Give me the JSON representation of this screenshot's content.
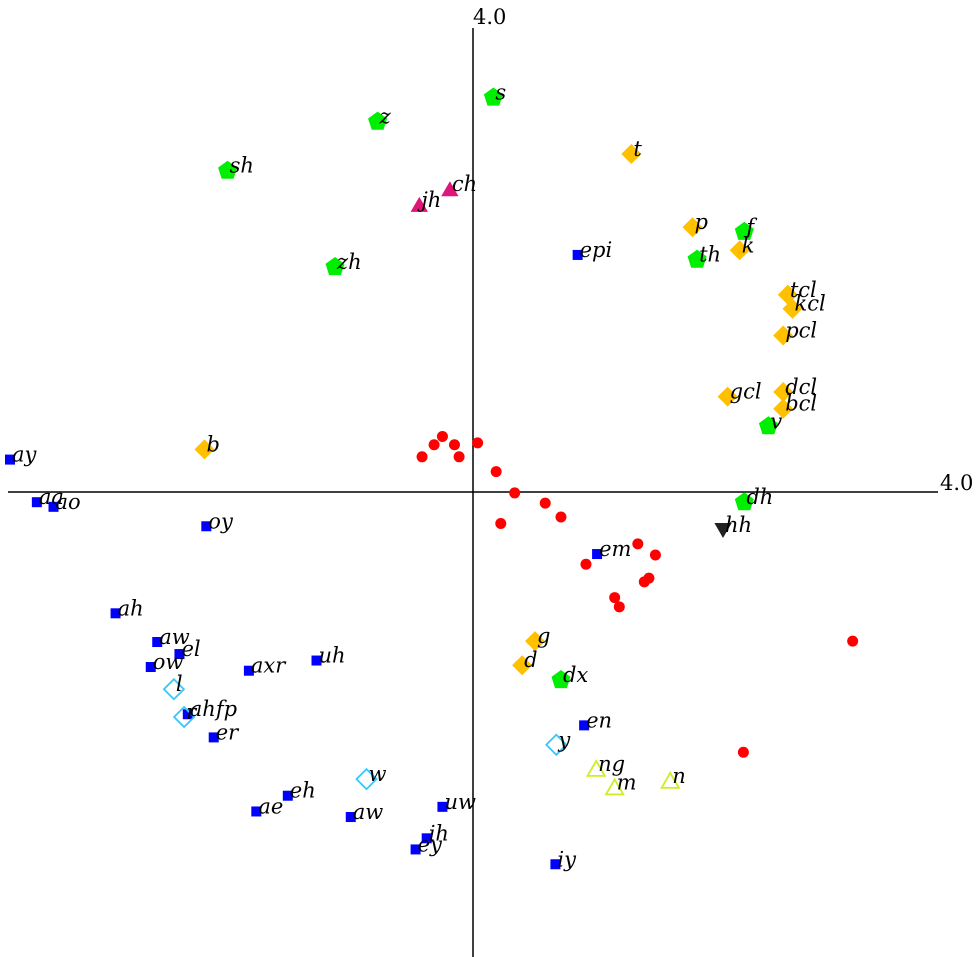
{
  "chart_data": {
    "type": "scatter",
    "title": "",
    "xlabel": "",
    "ylabel": "",
    "x_axis_label": "4.0",
    "y_axis_label": "4.0",
    "xlim": [
      -5.0,
      4.0
    ],
    "ylim": [
      -8.5,
      4.0
    ],
    "grid": false,
    "legend": "none",
    "colors": {
      "vowel": "#0000ff",
      "stop": "#ffc000",
      "fricative": "#00ee00",
      "affricate": "#e0157a",
      "semivowel": "#33c8ff",
      "nasal": "#ccee22",
      "hh": "#222222",
      "unlabeled": "#ff0000"
    },
    "series": [
      {
        "marker": "square",
        "color": "#0000ff",
        "points": [
          {
            "x": -5.0,
            "y": 0.35,
            "label": "ay"
          },
          {
            "x": -4.71,
            "y": -0.11,
            "label": "aa"
          },
          {
            "x": -4.53,
            "y": -0.16,
            "label": "ao"
          },
          {
            "x": -2.88,
            "y": -0.37,
            "label": "oy"
          },
          {
            "x": -3.86,
            "y": -1.31,
            "label": "ah"
          },
          {
            "x": -3.41,
            "y": -1.62,
            "label": "aw"
          },
          {
            "x": -3.17,
            "y": -1.75,
            "label": "el"
          },
          {
            "x": -3.48,
            "y": -1.89,
            "label": "ow"
          },
          {
            "x": -2.42,
            "y": -1.93,
            "label": "axr"
          },
          {
            "x": -1.69,
            "y": -1.82,
            "label": "uh"
          },
          {
            "x": -3.08,
            "y": -2.4,
            "label": "ahfp"
          },
          {
            "x": -2.8,
            "y": -2.65,
            "label": "er"
          },
          {
            "x": -2.0,
            "y": -3.28,
            "label": "eh"
          },
          {
            "x": -2.34,
            "y": -3.45,
            "label": "ae"
          },
          {
            "x": -1.32,
            "y": -3.51,
            "label": "aw"
          },
          {
            "x": -0.33,
            "y": -3.4,
            "label": "uw"
          },
          {
            "x": -0.5,
            "y": -3.74,
            "label": "ih"
          },
          {
            "x": -0.62,
            "y": -3.86,
            "label": "ey"
          },
          {
            "x": 0.89,
            "y": -4.02,
            "label": "iy"
          },
          {
            "x": 1.2,
            "y": -2.52,
            "label": "en"
          },
          {
            "x": 1.34,
            "y": -0.67,
            "label": "em"
          },
          {
            "x": 1.13,
            "y": 2.56,
            "label": "epi"
          }
        ]
      },
      {
        "marker": "diamond",
        "color": "#ffc000",
        "points": [
          {
            "x": -2.9,
            "y": 0.46,
            "label": "b"
          },
          {
            "x": 1.71,
            "y": 3.65,
            "label": "t"
          },
          {
            "x": 2.37,
            "y": 2.86,
            "label": "p"
          },
          {
            "x": 2.88,
            "y": 2.61,
            "label": "k"
          },
          {
            "x": 3.4,
            "y": 2.13,
            "label": "tcl"
          },
          {
            "x": 3.45,
            "y": 1.98,
            "label": "kcl"
          },
          {
            "x": 3.35,
            "y": 1.69,
            "label": "pcl"
          },
          {
            "x": 2.75,
            "y": 1.03,
            "label": "gcl"
          },
          {
            "x": 3.35,
            "y": 1.08,
            "label": "dcl"
          },
          {
            "x": 3.35,
            "y": 0.9,
            "label": "bcl"
          },
          {
            "x": 0.67,
            "y": -1.61,
            "label": "g"
          },
          {
            "x": 0.53,
            "y": -1.87,
            "label": "d"
          }
        ]
      },
      {
        "marker": "pentagon",
        "color": "#00ee00",
        "points": [
          {
            "x": 0.22,
            "y": 4.26,
            "label": "s"
          },
          {
            "x": -1.03,
            "y": 4.0,
            "label": "z"
          },
          {
            "x": -2.65,
            "y": 3.47,
            "label": "sh"
          },
          {
            "x": -1.49,
            "y": 2.43,
            "label": "zh"
          },
          {
            "x": 2.93,
            "y": 2.81,
            "label": "f"
          },
          {
            "x": 2.42,
            "y": 2.51,
            "label": "th"
          },
          {
            "x": 3.19,
            "y": 0.71,
            "label": "v"
          },
          {
            "x": 2.93,
            "y": -0.11,
            "label": "dh"
          },
          {
            "x": 0.95,
            "y": -2.03,
            "label": "dx"
          }
        ]
      },
      {
        "marker": "triangle-up",
        "color": "#e0157a",
        "points": [
          {
            "x": -0.25,
            "y": 3.27,
            "label": "ch"
          },
          {
            "x": -0.58,
            "y": 3.1,
            "label": "jh"
          }
        ]
      },
      {
        "marker": "diamond-open",
        "color": "#33c8ff",
        "points": [
          {
            "x": -3.23,
            "y": -2.13,
            "label": "l"
          },
          {
            "x": -3.12,
            "y": -2.43,
            "label": "r"
          },
          {
            "x": -1.15,
            "y": -3.1,
            "label": "w"
          },
          {
            "x": 0.9,
            "y": -2.73,
            "label": "y"
          }
        ]
      },
      {
        "marker": "triangle-open",
        "color": "#ccee22",
        "points": [
          {
            "x": 1.33,
            "y": -2.99,
            "label": "ng"
          },
          {
            "x": 1.53,
            "y": -3.19,
            "label": "m"
          },
          {
            "x": 2.13,
            "y": -3.12,
            "label": "n"
          }
        ]
      },
      {
        "marker": "triangle-down",
        "color": "#222222",
        "points": [
          {
            "x": 2.7,
            "y": -0.41,
            "label": "hh"
          }
        ]
      },
      {
        "marker": "circle",
        "color": "#ff0000",
        "points": [
          {
            "x": -0.55,
            "y": 0.38,
            "label": ""
          },
          {
            "x": -0.42,
            "y": 0.51,
            "label": ""
          },
          {
            "x": -0.33,
            "y": 0.6,
            "label": ""
          },
          {
            "x": -0.2,
            "y": 0.51,
            "label": ""
          },
          {
            "x": -0.15,
            "y": 0.38,
            "label": ""
          },
          {
            "x": 0.05,
            "y": 0.53,
            "label": ""
          },
          {
            "x": 0.25,
            "y": 0.22,
            "label": ""
          },
          {
            "x": 0.45,
            "y": -0.01,
            "label": ""
          },
          {
            "x": 0.3,
            "y": -0.34,
            "label": ""
          },
          {
            "x": 0.78,
            "y": -0.12,
            "label": ""
          },
          {
            "x": 0.95,
            "y": -0.27,
            "label": ""
          },
          {
            "x": 1.22,
            "y": -0.78,
            "label": ""
          },
          {
            "x": 1.78,
            "y": -0.56,
            "label": ""
          },
          {
            "x": 1.97,
            "y": -0.68,
            "label": ""
          },
          {
            "x": 1.9,
            "y": -0.93,
            "label": ""
          },
          {
            "x": 1.85,
            "y": -0.97,
            "label": ""
          },
          {
            "x": 1.53,
            "y": -1.14,
            "label": ""
          },
          {
            "x": 1.58,
            "y": -1.24,
            "label": ""
          },
          {
            "x": 4.1,
            "y": -1.61,
            "label": ""
          },
          {
            "x": 2.92,
            "y": -2.81,
            "label": ""
          }
        ]
      }
    ]
  }
}
